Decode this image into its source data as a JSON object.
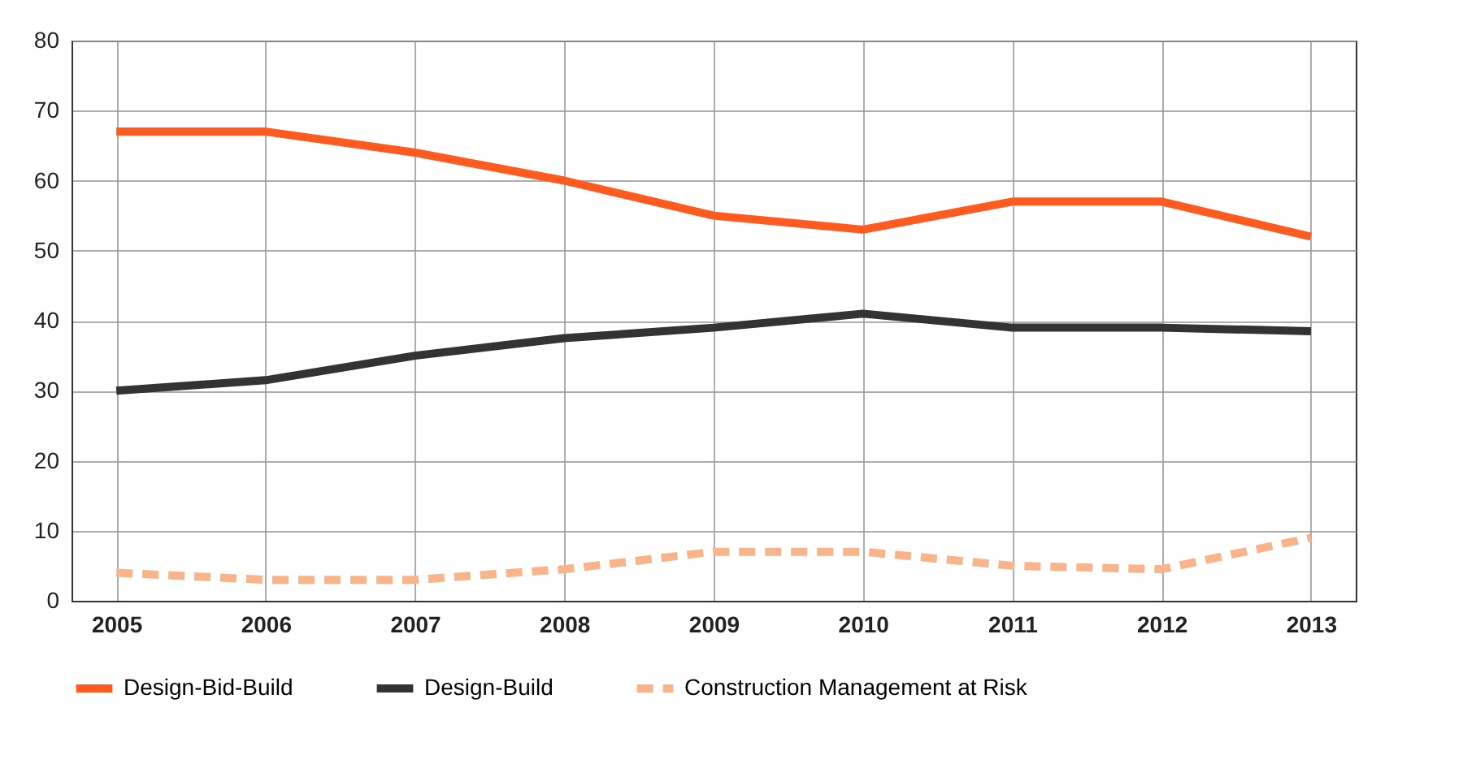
{
  "chart_data": {
    "type": "line",
    "categories": [
      "2005",
      "2006",
      "2007",
      "2008",
      "2009",
      "2010",
      "2011",
      "2012",
      "2013"
    ],
    "series": [
      {
        "name": "Design-Bid-Build",
        "color": "#ff5a1f",
        "line_style": "solid",
        "values": [
          67,
          67,
          64,
          60,
          55,
          53,
          57,
          57,
          52
        ]
      },
      {
        "name": "Design-Build",
        "color": "#333333",
        "line_style": "solid",
        "values": [
          30,
          31.5,
          35,
          37.5,
          39,
          41,
          39,
          39,
          38.5
        ]
      },
      {
        "name": "Construction Management at Risk",
        "color": "#f9b48a",
        "line_style": "dashed",
        "values": [
          4,
          3,
          3,
          4.5,
          7,
          7,
          5,
          4.5,
          9
        ]
      }
    ],
    "ylim": [
      0,
      80
    ],
    "yticks": [
      0,
      10,
      20,
      30,
      40,
      50,
      60,
      70,
      80
    ],
    "grid": true,
    "legend": "bottom",
    "marker": "none"
  }
}
